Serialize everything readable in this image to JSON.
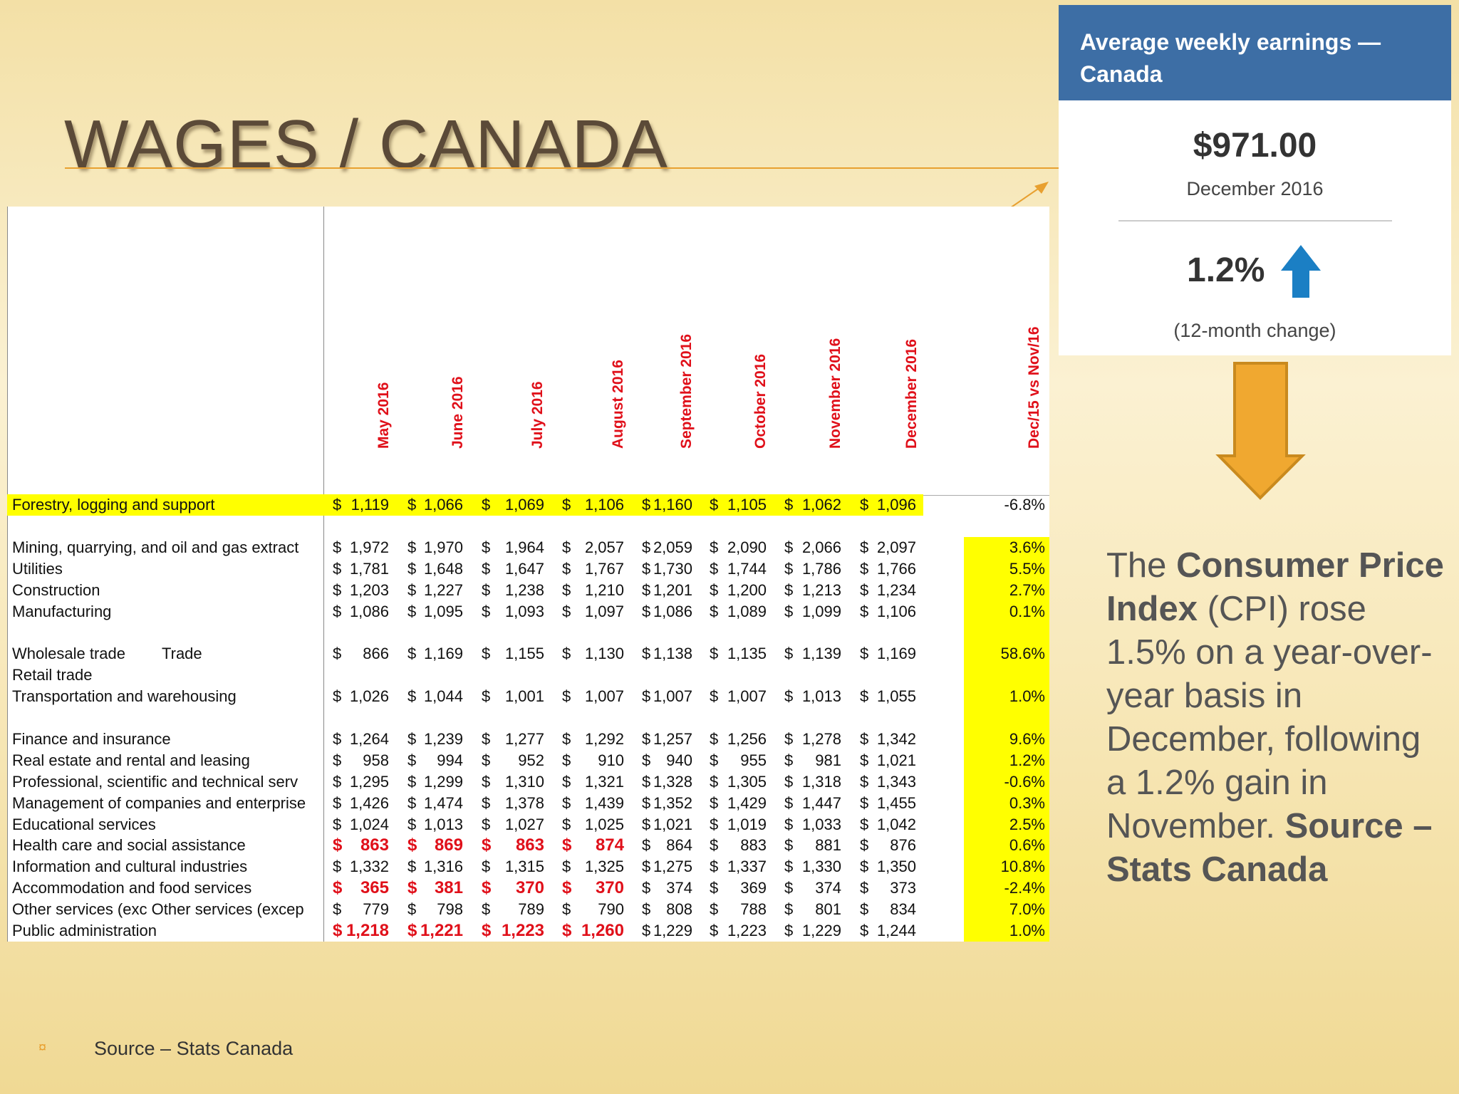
{
  "title": "WAGES / CANADA",
  "table": {
    "currency": "$",
    "columns": [
      "May 2016",
      "June 2016",
      "July 2016",
      "August 2016",
      "September 2016",
      "October 2016",
      "November 2016",
      "December 2016"
    ],
    "change_header": "Dec/15 vs Nov/16",
    "rows": [
      {
        "label": "Forestry, logging and support",
        "values": [
          "1,119",
          "1,066",
          "1,069",
          "1,106",
          "1,160",
          "1,105",
          "1,062",
          "1,096"
        ],
        "change": "-6.8%",
        "highlight": true
      },
      {
        "label": "Mining, quarrying, and oil and gas extract",
        "values": [
          "1,972",
          "1,970",
          "1,964",
          "2,057",
          "2,059",
          "2,090",
          "2,066",
          "2,097"
        ],
        "change": "3.6%"
      },
      {
        "label": "Utilities",
        "values": [
          "1,781",
          "1,648",
          "1,647",
          "1,767",
          "1,730",
          "1,744",
          "1,786",
          "1,766"
        ],
        "change": "5.5%"
      },
      {
        "label": "Construction",
        "values": [
          "1,203",
          "1,227",
          "1,238",
          "1,210",
          "1,201",
          "1,200",
          "1,213",
          "1,234"
        ],
        "change": "2.7%"
      },
      {
        "label": "Manufacturing",
        "values": [
          "1,086",
          "1,095",
          "1,093",
          "1,097",
          "1,086",
          "1,089",
          "1,099",
          "1,106"
        ],
        "change": "0.1%"
      },
      {
        "label": "Wholesale trade",
        "sublabel": "Trade",
        "values": [
          "866",
          "1,169",
          "1,155",
          "1,130",
          "1,138",
          "1,135",
          "1,139",
          "1,169"
        ],
        "change": "58.6%"
      },
      {
        "label": "Retail trade"
      },
      {
        "label": "Transportation and warehousing",
        "values": [
          "1,026",
          "1,044",
          "1,001",
          "1,007",
          "1,007",
          "1,007",
          "1,013",
          "1,055"
        ],
        "change": "1.0%"
      },
      {
        "label": "Finance and insurance",
        "values": [
          "1,264",
          "1,239",
          "1,277",
          "1,292",
          "1,257",
          "1,256",
          "1,278",
          "1,342"
        ],
        "change": "9.6%"
      },
      {
        "label": "Real estate and rental and leasing",
        "values": [
          "958",
          "994",
          "952",
          "910",
          "940",
          "955",
          "981",
          "1,021"
        ],
        "change": "1.2%"
      },
      {
        "label": "Professional, scientific and technical serv",
        "values": [
          "1,295",
          "1,299",
          "1,310",
          "1,321",
          "1,328",
          "1,305",
          "1,318",
          "1,343"
        ],
        "change": "-0.6%"
      },
      {
        "label": "Management of companies and enterprise",
        "values": [
          "1,426",
          "1,474",
          "1,378",
          "1,439",
          "1,352",
          "1,429",
          "1,447",
          "1,455"
        ],
        "change": "0.3%"
      },
      {
        "label": "Educational services",
        "values": [
          "1,024",
          "1,013",
          "1,027",
          "1,025",
          "1,021",
          "1,019",
          "1,033",
          "1,042"
        ],
        "change": "2.5%"
      },
      {
        "label": "Health care and social assistance",
        "values": [
          "863",
          "869",
          "863",
          "874",
          "864",
          "883",
          "881",
          "876"
        ],
        "change": "0.6%",
        "emphasis": [
          0,
          1,
          2,
          3
        ]
      },
      {
        "label": "Information and cultural industries",
        "values": [
          "1,332",
          "1,316",
          "1,315",
          "1,325",
          "1,275",
          "1,337",
          "1,330",
          "1,350"
        ],
        "change": "10.8%"
      },
      {
        "label": "Accommodation and food services",
        "values": [
          "365",
          "381",
          "370",
          "370",
          "374",
          "369",
          "374",
          "373"
        ],
        "change": "-2.4%",
        "emphasis": [
          0,
          1,
          2,
          3
        ]
      },
      {
        "label": "Other services (exc Other services (excep",
        "values": [
          "779",
          "798",
          "789",
          "790",
          "808",
          "788",
          "801",
          "834"
        ],
        "change": "7.0%"
      },
      {
        "label": "Public administration",
        "values": [
          "1,218",
          "1,221",
          "1,223",
          "1,260",
          "1,229",
          "1,223",
          "1,229",
          "1,244"
        ],
        "change": "1.0%",
        "emphasis": [
          0,
          1,
          2,
          3
        ]
      }
    ]
  },
  "card": {
    "header": "Average weekly earnings — Canada",
    "amount": "$971.00",
    "period": "December 2016",
    "change": "1.2%",
    "change_note": "(12-month change)"
  },
  "note": [
    {
      "text": "The "
    },
    {
      "text": "Consumer Price Index",
      "bold": true
    },
    {
      "text": " (CPI) rose 1.5% on a year-over-year basis in December, following a 1.2% gain in November. "
    },
    {
      "text": "Source – Stats Canada",
      "bold": true
    }
  ],
  "footer": "Source – Stats Canada"
}
